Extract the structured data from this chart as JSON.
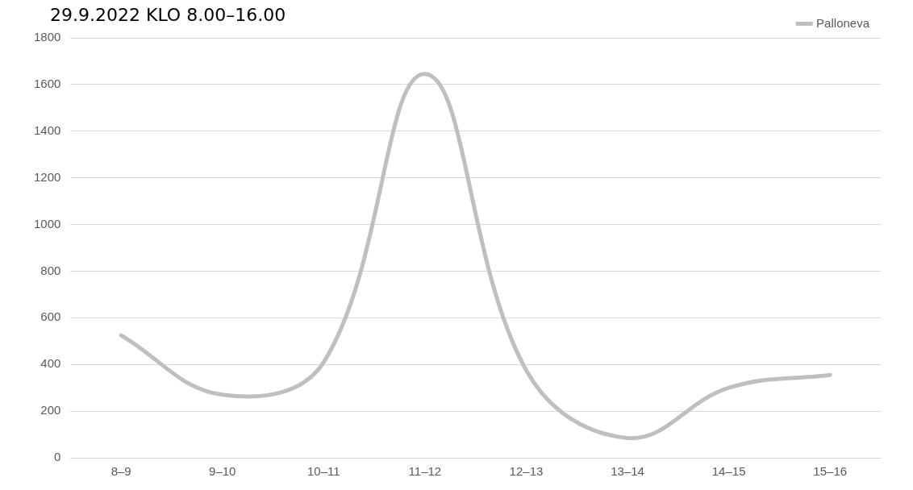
{
  "chart_data": {
    "type": "line",
    "title": "29.9.2022 KLO 8.00–16.00",
    "categories": [
      "8–9",
      "9–10",
      "10–11",
      "11–12",
      "12–13",
      "13–14",
      "14–15",
      "15–16"
    ],
    "series": [
      {
        "name": "Palloneva",
        "color": "#bfbfbf",
        "values": [
          525,
          270,
          410,
          1645,
          375,
          85,
          300,
          355
        ]
      }
    ],
    "ylim": [
      0,
      1800
    ],
    "yticks": [
      0,
      200,
      400,
      600,
      800,
      1000,
      1200,
      1400,
      1600,
      1800
    ],
    "grid": "y",
    "legend": "top right",
    "marker": "none",
    "line_style": "solid"
  }
}
